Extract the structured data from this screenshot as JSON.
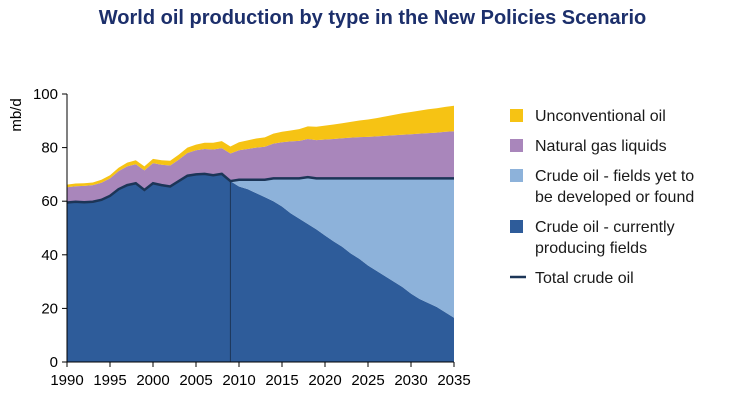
{
  "chart_data": {
    "type": "area",
    "title": "World oil production by type in the New Policies Scenario",
    "ylabel": "mb/d",
    "xlabel": "",
    "xlim": [
      1990,
      2035
    ],
    "ylim": [
      0,
      100
    ],
    "x_ticks": [
      "1990",
      "1995",
      "2000",
      "2005",
      "2010",
      "2015",
      "2020",
      "2025",
      "2030",
      "2035"
    ],
    "y_ticks": [
      "0",
      "20",
      "40",
      "60",
      "80",
      "100"
    ],
    "x": [
      1990,
      1991,
      1992,
      1993,
      1994,
      1995,
      1996,
      1997,
      1998,
      1999,
      2000,
      2001,
      2002,
      2003,
      2004,
      2005,
      2006,
      2007,
      2008,
      2009,
      2010,
      2011,
      2012,
      2013,
      2014,
      2015,
      2016,
      2017,
      2018,
      2019,
      2020,
      2021,
      2022,
      2023,
      2024,
      2025,
      2026,
      2027,
      2028,
      2029,
      2030,
      2031,
      2032,
      2033,
      2034,
      2035
    ],
    "series": [
      {
        "name": "Crude oil - currently producing fields",
        "color": "#2e5c9a",
        "values": [
          59.5,
          59.8,
          59.6,
          59.8,
          60.5,
          62,
          64.5,
          66,
          66.7,
          64.2,
          66.7,
          66,
          65.5,
          67.5,
          69.5,
          70,
          70.2,
          69.7,
          70.2,
          67.5,
          65.5,
          64.5,
          63,
          61.5,
          60,
          58,
          55.5,
          53.5,
          51.5,
          49.5,
          47.2,
          45,
          43,
          40.5,
          38.5,
          36,
          34,
          32,
          30,
          28,
          25.5,
          23.5,
          22,
          20.5,
          18.5,
          16.5
        ]
      },
      {
        "name": "Crude oil - fields yet to be developed or found",
        "color": "#8db2da",
        "values": [
          0,
          0,
          0,
          0,
          0,
          0,
          0,
          0,
          0,
          0,
          0,
          0,
          0,
          0,
          0,
          0,
          0,
          0,
          0,
          0,
          2.5,
          3.5,
          5,
          6.5,
          8.5,
          10.5,
          13,
          15,
          17.5,
          19,
          21.3,
          23.5,
          25.5,
          28,
          30,
          32.5,
          34.5,
          36.5,
          38.5,
          40.5,
          43,
          45,
          46.5,
          48,
          50,
          52
        ]
      },
      {
        "name": "Natural gas liquids",
        "color": "#a986bb",
        "values": [
          5.7,
          5.8,
          6.1,
          6.2,
          6.4,
          6.5,
          6.7,
          7,
          7.1,
          7.3,
          7.5,
          7.6,
          7.8,
          8,
          8.5,
          9,
          9.3,
          9.6,
          9.6,
          10.3,
          11,
          11.5,
          12,
          12.3,
          13,
          13.5,
          13.8,
          14,
          14.2,
          14.3,
          14.5,
          14.7,
          15,
          15.2,
          15.4,
          15.5,
          15.7,
          15.9,
          16.1,
          16.3,
          16.5,
          16.7,
          16.9,
          17.1,
          17.4,
          17.6
        ]
      },
      {
        "name": "Unconventional oil",
        "color": "#f6c314",
        "values": [
          1,
          1,
          1,
          1,
          1.1,
          1.2,
          1.3,
          1.4,
          1.5,
          1.5,
          1.6,
          1.7,
          1.8,
          1.9,
          2,
          2.1,
          2.3,
          2.5,
          2.6,
          2.6,
          3,
          3.2,
          3.4,
          3.5,
          3.7,
          3.9,
          4.1,
          4.4,
          4.7,
          5,
          5.2,
          5.4,
          5.6,
          5.9,
          6.2,
          6.5,
          6.8,
          7.2,
          7.6,
          8,
          8.3,
          8.6,
          8.9,
          9.1,
          9.3,
          9.5
        ]
      }
    ],
    "total_crude_oil": {
      "name": "Total crude oil",
      "color": "#1c3557",
      "values": [
        59.5,
        59.8,
        59.6,
        59.8,
        60.5,
        62,
        64.5,
        66,
        66.7,
        64.2,
        66.7,
        66,
        65.5,
        67.5,
        69.5,
        70,
        70.2,
        69.7,
        70.2,
        67.5,
        68,
        68,
        68,
        68,
        68.5,
        68.5,
        68.5,
        68.5,
        69,
        68.5,
        68.5,
        68.5,
        68.5,
        68.5,
        68.5,
        68.5,
        68.5,
        68.5,
        68.5,
        68.5,
        68.5,
        68.5,
        68.5,
        68.5,
        68.5,
        68.5
      ]
    },
    "legend_position": "right",
    "legend_order": [
      3,
      2,
      1,
      0
    ],
    "grid": false
  }
}
